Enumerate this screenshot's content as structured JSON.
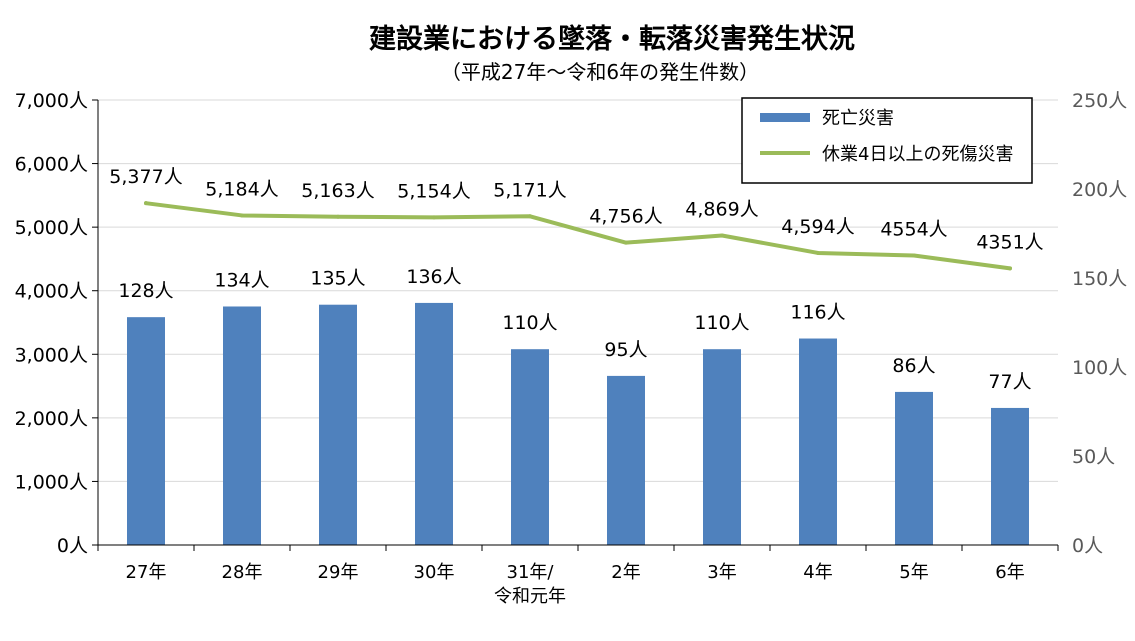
{
  "chart_data": {
    "type": "bar",
    "title": "建設業における墜落・転落災害発生状況",
    "subtitle": "（平成27年～令和6年の発生件数）",
    "categories": [
      [
        "27年"
      ],
      [
        "28年"
      ],
      [
        "29年"
      ],
      [
        "30年"
      ],
      [
        "31年/",
        "令和元年"
      ],
      [
        "2年"
      ],
      [
        "3年"
      ],
      [
        "4年"
      ],
      [
        "5年"
      ],
      [
        "6年"
      ]
    ],
    "series": [
      {
        "name": "死亡災害",
        "type": "bar",
        "axis": "right",
        "color": "#4F81BD",
        "values": [
          128,
          134,
          135,
          136,
          110,
          95,
          110,
          116,
          86,
          77
        ],
        "labels": [
          "128人",
          "134人",
          "135人",
          "136人",
          "110人",
          "95人",
          "110人",
          "116人",
          "86人",
          "77人"
        ]
      },
      {
        "name": "休業4日以上の死傷災害",
        "type": "line",
        "axis": "left",
        "color": "#9BBB59",
        "values": [
          5377,
          5184,
          5163,
          5154,
          5171,
          4756,
          4869,
          4594,
          4554,
          4351
        ],
        "labels": [
          "5,377人",
          "5,184人",
          "5,163人",
          "5,154人",
          "5,171人",
          "4,756人",
          "4,869人",
          "4,594人",
          "4554人",
          "4351人"
        ]
      }
    ],
    "left_axis": {
      "ylim": [
        0,
        7000
      ],
      "ticks": [
        "0人",
        "1,000人",
        "2,000人",
        "3,000人",
        "4,000人",
        "5,000人",
        "6,000人",
        "7,000人"
      ]
    },
    "right_axis": {
      "ylim": [
        0,
        250
      ],
      "ticks": [
        "0人",
        "50人",
        "100人",
        "150人",
        "200人",
        "250人"
      ]
    },
    "grid": true,
    "legend_position": "top-right"
  }
}
